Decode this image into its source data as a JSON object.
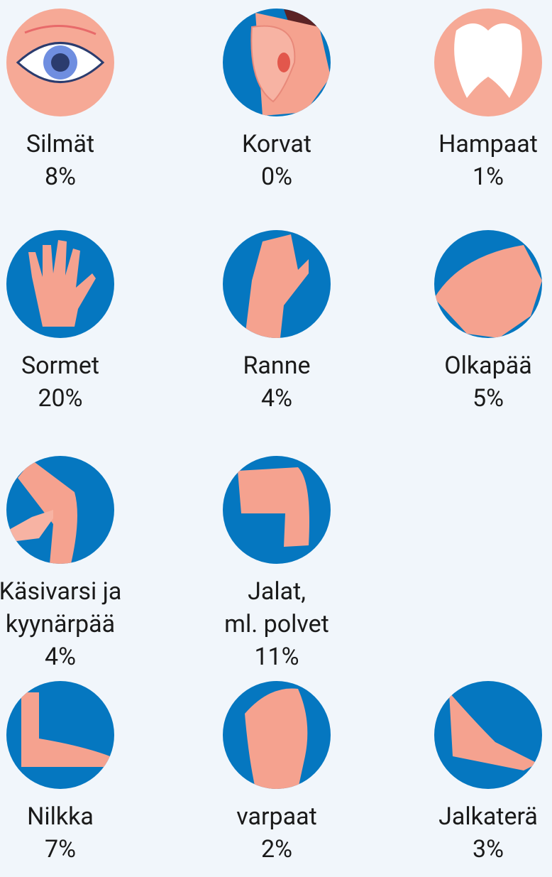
{
  "rows": [
    [
      {
        "label": [
          "Silmät"
        ],
        "value": "8%"
      },
      {
        "label": [
          "Korvat"
        ],
        "value": "0%"
      },
      {
        "label": [
          "Hampaat"
        ],
        "value": "1%"
      }
    ],
    [
      {
        "label": [
          "Sormet"
        ],
        "value": "20%"
      },
      {
        "label": [
          "Ranne"
        ],
        "value": "4%"
      },
      {
        "label": [
          "Olkapää"
        ],
        "value": "5%"
      }
    ],
    [
      {
        "label": [
          "Käsivarsi ja",
          "kyynärpää"
        ],
        "value": "4%"
      },
      {
        "label": [
          "Jalat,",
          "ml. polvet"
        ],
        "value": "11%"
      }
    ],
    [
      {
        "label": [
          "Nilkka"
        ],
        "value": "7%"
      },
      {
        "label": [
          "varpaat"
        ],
        "value": "2%"
      },
      {
        "label": [
          "Jalkaterä"
        ],
        "value": "3%"
      }
    ]
  ]
}
